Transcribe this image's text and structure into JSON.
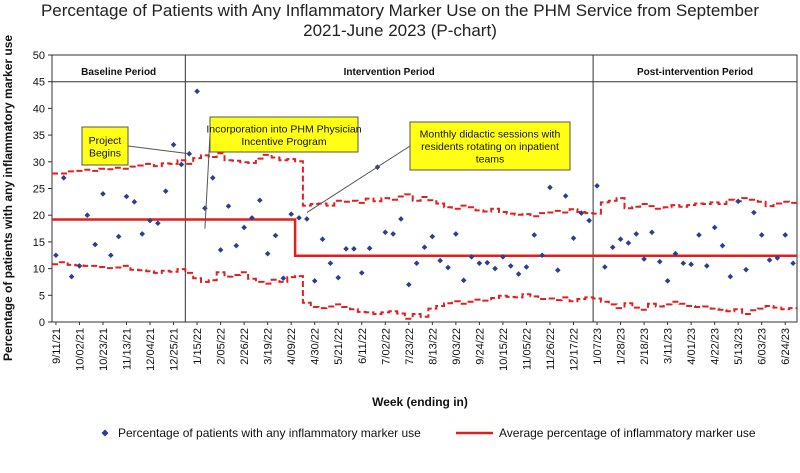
{
  "chart_data": {
    "type": "scatter",
    "title_lines": [
      "Percentage of Patients with Any Inflammatory Marker Use on the PHM Service from September",
      "2021-June 2023 (P-chart)"
    ],
    "xlabel": "Week (ending in)",
    "ylabel": "Percentage of patients with any inflammatory marker use",
    "ylim": [
      0,
      50
    ],
    "yticks": [
      0,
      5,
      10,
      15,
      20,
      25,
      30,
      35,
      40,
      45,
      50
    ],
    "n_weeks": 95,
    "x_tick_labels": [
      {
        "week": 0,
        "label": "9/11/21"
      },
      {
        "week": 3,
        "label": "10/02/21"
      },
      {
        "week": 6,
        "label": "10/23/21"
      },
      {
        "week": 9,
        "label": "11/13/21"
      },
      {
        "week": 12,
        "label": "12/04/21"
      },
      {
        "week": 15,
        "label": "12/25/21"
      },
      {
        "week": 18,
        "label": "1/15/22"
      },
      {
        "week": 21,
        "label": "2/05/22"
      },
      {
        "week": 24,
        "label": "2/26/22"
      },
      {
        "week": 27,
        "label": "3/19/22"
      },
      {
        "week": 30,
        "label": "4/09/22"
      },
      {
        "week": 33,
        "label": "4/30/22"
      },
      {
        "week": 36,
        "label": "5/21/22"
      },
      {
        "week": 39,
        "label": "6/11/22"
      },
      {
        "week": 42,
        "label": "7/02/22"
      },
      {
        "week": 45,
        "label": "7/23/22"
      },
      {
        "week": 48,
        "label": "8/13/22"
      },
      {
        "week": 51,
        "label": "9/03/22"
      },
      {
        "week": 54,
        "label": "9/24/22"
      },
      {
        "week": 57,
        "label": "10/15/22"
      },
      {
        "week": 60,
        "label": "11/05/22"
      },
      {
        "week": 63,
        "label": "11/26/22"
      },
      {
        "week": 66,
        "label": "12/17/22"
      },
      {
        "week": 69,
        "label": "1/07/23"
      },
      {
        "week": 72,
        "label": "1/28/23"
      },
      {
        "week": 75,
        "label": "2/18/23"
      },
      {
        "week": 78,
        "label": "3/11/23"
      },
      {
        "week": 81,
        "label": "4/01/23"
      },
      {
        "week": 84,
        "label": "4/22/23"
      },
      {
        "week": 87,
        "label": "5/13/23"
      },
      {
        "week": 90,
        "label": "6/03/23"
      },
      {
        "week": 93,
        "label": "6/24/23"
      }
    ],
    "periods": [
      {
        "label": "Baseline Period",
        "start": 0,
        "end": 17
      },
      {
        "label": "Intervention Period",
        "start": 17,
        "end": 69
      },
      {
        "label": "Post-intervention Period",
        "start": 69,
        "end": 95
      }
    ],
    "series": [
      {
        "name": "Percentage of patients with any inflammatory marker use",
        "kind": "points",
        "color": "#2a3f8f",
        "values": [
          12.5,
          27,
          8.5,
          10.5,
          20,
          14.5,
          24,
          12.5,
          16,
          23.5,
          22.5,
          16.5,
          19,
          18.5,
          24.5,
          33.2,
          29.5,
          31.5,
          43.2,
          21.3,
          27,
          13.5,
          21.7,
          14.3,
          17.7,
          19.5,
          22.8,
          12.8,
          16.2,
          8.2,
          20.2,
          19.5,
          19.3,
          7.7,
          15.5,
          11,
          8.3,
          13.7,
          13.7,
          9.2,
          13.8,
          29,
          16.8,
          16.5,
          19.3,
          7,
          11,
          14,
          16,
          11.5,
          10.2,
          16.5,
          7.8,
          12.2,
          11,
          11.1,
          10,
          12.2,
          10.5,
          9,
          10.3,
          16.3,
          12.5,
          25.2,
          9.7,
          23.6,
          15.7,
          20.4,
          19,
          25.5,
          10.3,
          14,
          15.5,
          14.8,
          16.5,
          11.8,
          16.8,
          11.3,
          7.7,
          12.8,
          11,
          10.8,
          16.3,
          10.5,
          17.7,
          14.3,
          8.5,
          22.6,
          9.8,
          20.5,
          16.3,
          11.6,
          12,
          16.3,
          11
        ]
      },
      {
        "name": "Average percentage of inflammatory marker use",
        "kind": "line",
        "color": "#e02020",
        "segments": [
          {
            "start": 0,
            "end": 31,
            "value": 19.2
          },
          {
            "start": 31,
            "end": 95,
            "value": 12.4
          }
        ]
      },
      {
        "name": "Upper control limit",
        "kind": "dashed",
        "color": "#e02020",
        "values": [
          27.8,
          27.8,
          28.2,
          28.3,
          28.5,
          28.3,
          28.7,
          28.6,
          28.9,
          28.7,
          29.1,
          29.3,
          29.6,
          29.2,
          29.7,
          29.6,
          30.3,
          29.6,
          30.7,
          31.2,
          30.9,
          31.6,
          30.3,
          30.2,
          29.9,
          29.8,
          30.6,
          31.3,
          30.8,
          30.3,
          30.5,
          30.1,
          21.8,
          22.1,
          22.2,
          21.8,
          22.7,
          22.5,
          22.7,
          22.3,
          23.1,
          22.6,
          23.2,
          22.9,
          23.5,
          23.9,
          22.7,
          23.4,
          22.8,
          22.2,
          21.5,
          21.2,
          21.8,
          21.5,
          20.9,
          20.7,
          21.2,
          20.6,
          20.3,
          20.1,
          20.2,
          19.8,
          20.4,
          20.5,
          20.8,
          20.5,
          21.1,
          20.6,
          20.4,
          20.3,
          22.4,
          22.7,
          23.2,
          21.3,
          21.6,
          22.1,
          21.7,
          21.2,
          21.5,
          21.9,
          21.6,
          21.9,
          22.2,
          22.1,
          22.4,
          22.1,
          22.9,
          22.6,
          23.2,
          22.9,
          22.5,
          21.7,
          22.2,
          22.5,
          22.3
        ]
      },
      {
        "name": "Lower control limit",
        "kind": "dashed",
        "color": "#e02020",
        "values": [
          10.8,
          11.2,
          10.7,
          10.6,
          10.5,
          10.5,
          10.3,
          10.1,
          10.2,
          10.5,
          9.8,
          9.7,
          9.5,
          9.2,
          9.6,
          9.4,
          9.9,
          9.2,
          8.2,
          7.5,
          7.8,
          9.3,
          8.5,
          8.8,
          9.3,
          8.1,
          7.5,
          7.2,
          7.9,
          7.5,
          8.4,
          8.6,
          3.6,
          2.8,
          2.6,
          2.9,
          3.3,
          2.8,
          2.4,
          1.9,
          1.8,
          1.5,
          1.8,
          2.0,
          1.6,
          0.6,
          1.5,
          1.0,
          2.5,
          3.0,
          3.5,
          3.9,
          3.4,
          3.8,
          4.2,
          4.0,
          4.5,
          4.9,
          4.7,
          4.6,
          5.2,
          4.8,
          4.3,
          4.4,
          4.1,
          4.6,
          3.9,
          4.3,
          4.6,
          4.4,
          3.8,
          3.3,
          2.6,
          3.5,
          2.7,
          2.3,
          3.4,
          2.9,
          3.3,
          3.8,
          3.4,
          3.0,
          2.8,
          2.9,
          2.5,
          2.3,
          2.0,
          2.4,
          1.5,
          2.2,
          2.5,
          3.0,
          2.7,
          2.4,
          2.6
        ]
      }
    ],
    "annotations": [
      {
        "lines": [
          "Project",
          "Begins"
        ],
        "week": 17,
        "value": 31.5
      },
      {
        "lines": [
          "Incorporation into PHM Physician",
          "Incentive Program"
        ],
        "week": 19,
        "value": 17.5
      },
      {
        "lines": [
          "Monthly didactic sessions with",
          "residents rotating on inpatient",
          "teams"
        ],
        "week": 32,
        "value": 20.5
      }
    ],
    "legend": [
      {
        "label": "Percentage of patients with any inflammatory marker use",
        "marker": "diamond"
      },
      {
        "label": "Average percentage of inflammatory marker use",
        "marker": "line"
      }
    ],
    "grid": false
  }
}
